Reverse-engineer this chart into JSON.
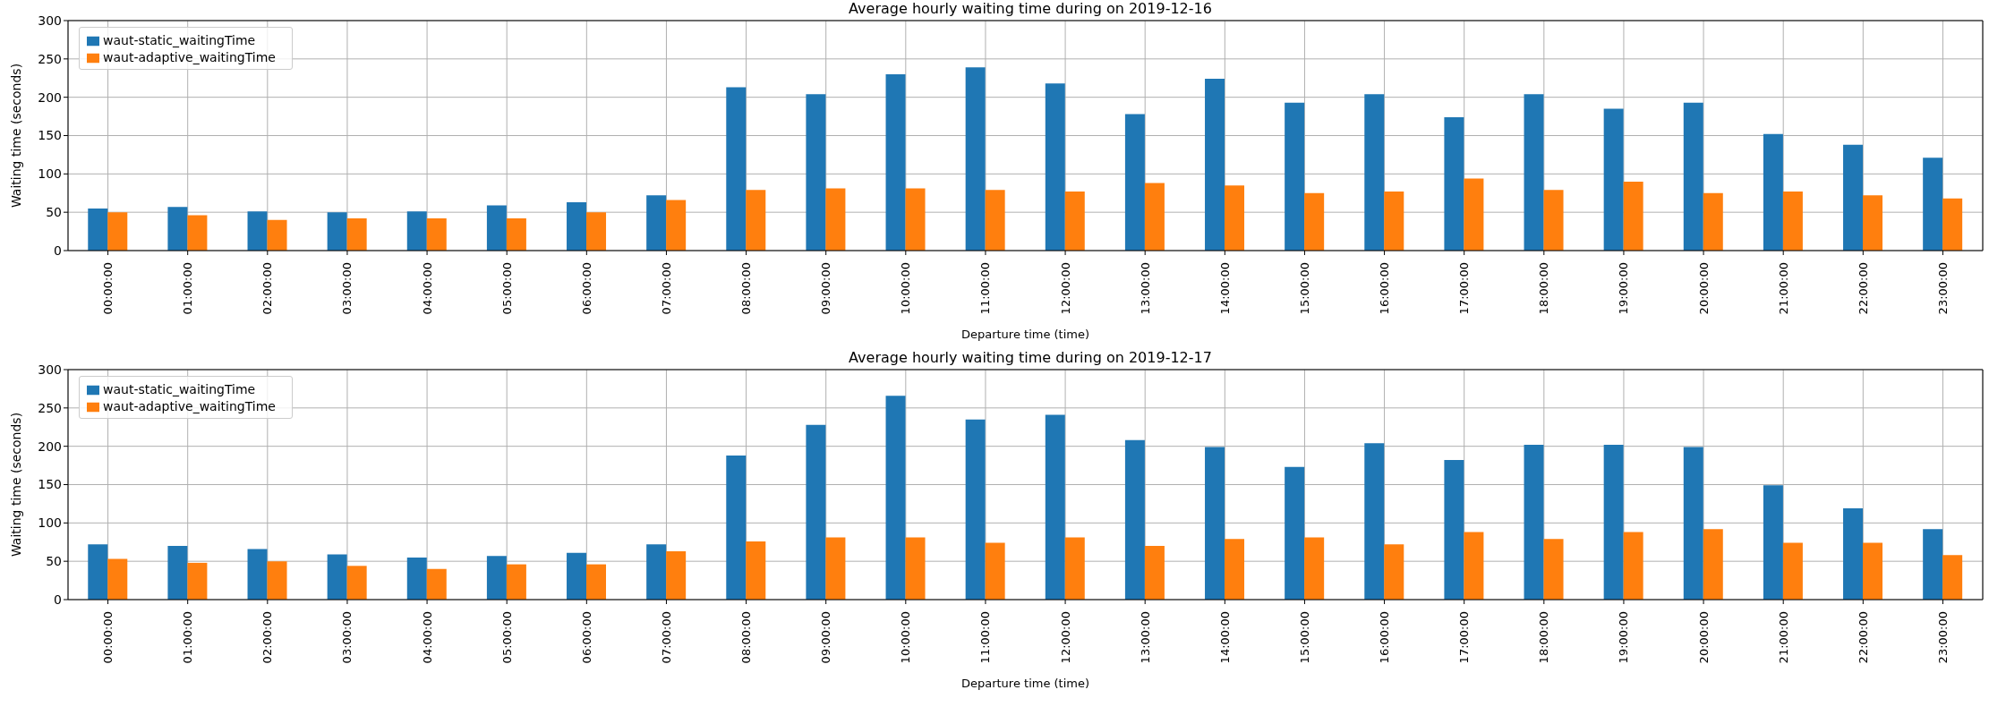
{
  "chart_data": [
    {
      "type": "bar",
      "title": "Average hourly waiting time during on 2019-12-16",
      "xlabel": "Departure time (time)",
      "ylabel": "Waiting time (seconds)",
      "categories": [
        "00:00:00",
        "01:00:00",
        "02:00:00",
        "03:00:00",
        "04:00:00",
        "05:00:00",
        "06:00:00",
        "07:00:00",
        "08:00:00",
        "09:00:00",
        "10:00:00",
        "11:00:00",
        "12:00:00",
        "13:00:00",
        "14:00:00",
        "15:00:00",
        "16:00:00",
        "17:00:00",
        "18:00:00",
        "19:00:00",
        "20:00:00",
        "21:00:00",
        "22:00:00",
        "23:00:00"
      ],
      "series": [
        {
          "name": "waut-static_waitingTime",
          "color": "#1f77b4",
          "values": [
            55,
            57,
            51,
            50,
            51,
            59,
            63,
            72,
            213,
            204,
            230,
            239,
            218,
            178,
            224,
            193,
            204,
            174,
            204,
            185,
            193,
            152,
            138,
            121
          ]
        },
        {
          "name": "waut-adaptive_waitingTime",
          "color": "#ff7f0e",
          "values": [
            50,
            46,
            40,
            42,
            42,
            42,
            50,
            66,
            79,
            81,
            81,
            79,
            77,
            88,
            85,
            75,
            77,
            94,
            79,
            90,
            75,
            77,
            72,
            68
          ]
        }
      ],
      "ylim": [
        0,
        300
      ],
      "yticks": [
        0,
        50,
        100,
        150,
        200,
        250,
        300
      ],
      "grid": true,
      "legend": "top left"
    },
    {
      "type": "bar",
      "title": "Average hourly waiting time during on 2019-12-17",
      "xlabel": "Departure time (time)",
      "ylabel": "Waiting time (seconds)",
      "categories": [
        "00:00:00",
        "01:00:00",
        "02:00:00",
        "03:00:00",
        "04:00:00",
        "05:00:00",
        "06:00:00",
        "07:00:00",
        "08:00:00",
        "09:00:00",
        "10:00:00",
        "11:00:00",
        "12:00:00",
        "13:00:00",
        "14:00:00",
        "15:00:00",
        "16:00:00",
        "17:00:00",
        "18:00:00",
        "19:00:00",
        "20:00:00",
        "21:00:00",
        "22:00:00",
        "23:00:00"
      ],
      "series": [
        {
          "name": "waut-static_waitingTime",
          "color": "#1f77b4",
          "values": [
            72,
            70,
            66,
            59,
            55,
            57,
            61,
            72,
            188,
            228,
            266,
            235,
            241,
            208,
            199,
            173,
            204,
            182,
            202,
            202,
            199,
            149,
            119,
            92
          ]
        },
        {
          "name": "waut-adaptive_waitingTime",
          "color": "#ff7f0e",
          "values": [
            53,
            48,
            50,
            44,
            40,
            46,
            46,
            63,
            76,
            81,
            81,
            74,
            81,
            70,
            79,
            81,
            72,
            88,
            79,
            88,
            92,
            74,
            74,
            58
          ]
        }
      ],
      "ylim": [
        0,
        300
      ],
      "yticks": [
        0,
        50,
        100,
        150,
        200,
        250,
        300
      ],
      "grid": true,
      "legend": "top left"
    }
  ]
}
